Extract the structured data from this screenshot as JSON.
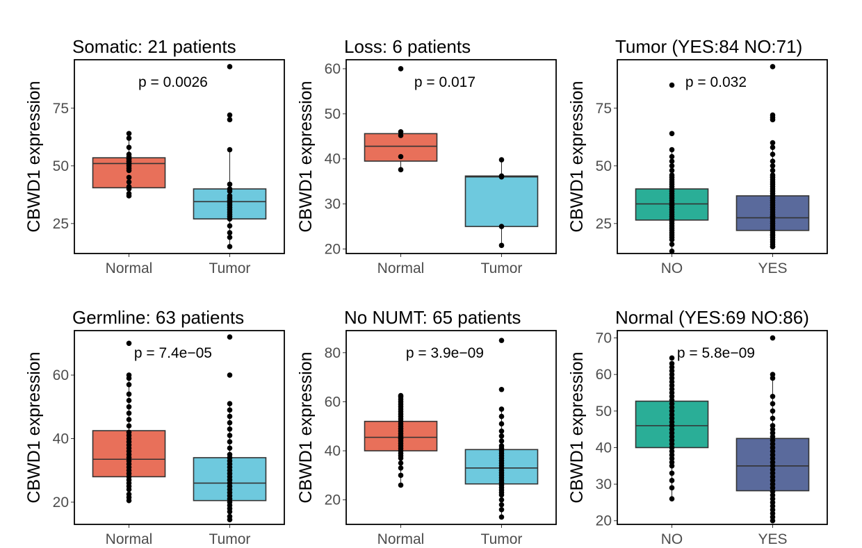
{
  "chart_data": [
    {
      "type": "box",
      "title": "Somatic: 21 patients",
      "ylabel": "CBWD1 expression",
      "xlabel": "",
      "ylim": [
        12,
        96
      ],
      "yticks": [
        25,
        50,
        75
      ],
      "pvalue": "p = 0.0026",
      "categories": [
        "Normal",
        "Tumor"
      ],
      "colors": [
        "#e8705a",
        "#6ec9de"
      ],
      "boxes": [
        {
          "q1": 40.5,
          "median": 51,
          "q3": 53.5,
          "whisker_low": 37,
          "whisker_high": 64
        },
        {
          "q1": 27,
          "median": 34.5,
          "q3": 40,
          "whisker_low": 15,
          "whisker_high": 57
        }
      ],
      "points": [
        [
          37,
          38,
          40,
          41,
          43,
          45,
          48,
          49,
          50,
          51,
          51,
          52,
          52,
          53,
          53,
          54,
          55,
          58,
          62,
          64
        ],
        [
          15,
          19,
          21,
          24,
          27,
          28,
          29,
          30,
          31,
          32,
          33,
          34,
          35,
          36,
          37,
          39,
          40,
          42,
          57,
          70,
          72,
          93
        ]
      ]
    },
    {
      "type": "box",
      "title": "Loss: 6 patients",
      "ylabel": "CBWD1 expression",
      "xlabel": "",
      "ylim": [
        19,
        62
      ],
      "yticks": [
        20,
        30,
        40,
        50,
        60
      ],
      "pvalue": "p = 0.017",
      "categories": [
        "Normal",
        "Tumor"
      ],
      "colors": [
        "#e8705a",
        "#6ec9de"
      ],
      "boxes": [
        {
          "q1": 39.5,
          "median": 42.8,
          "q3": 45.6,
          "whisker_low": 37.6,
          "whisker_high": 46
        },
        {
          "q1": 25,
          "median": 36,
          "q3": 36.2,
          "whisker_low": 20.8,
          "whisker_high": 39.8
        }
      ],
      "points": [
        [
          37.6,
          40.5,
          45.2,
          46,
          60
        ],
        [
          20.8,
          25,
          36,
          36.2,
          39.8
        ]
      ]
    },
    {
      "type": "box",
      "title": "Tumor (YES:84 NO:71)",
      "ylabel": "CBWD1 expression",
      "xlabel": "",
      "ylim": [
        12,
        96
      ],
      "yticks": [
        25,
        50,
        75
      ],
      "pvalue": "p = 0.032",
      "categories": [
        "NO",
        "YES"
      ],
      "colors": [
        "#2aae97",
        "#5a6a9c"
      ],
      "boxes": [
        {
          "q1": 26.5,
          "median": 33.5,
          "q3": 40,
          "whisker_low": 13,
          "whisker_high": 57
        },
        {
          "q1": 22,
          "median": 27.5,
          "q3": 37,
          "whisker_low": 15,
          "whisker_high": 60
        }
      ],
      "points": [
        [
          13,
          16,
          18,
          19,
          20,
          21,
          22,
          23,
          24,
          25,
          26,
          27,
          27,
          28,
          29,
          30,
          31,
          32,
          33,
          33,
          34,
          35,
          36,
          37,
          38,
          39,
          40,
          41,
          42,
          43,
          44,
          45,
          46,
          48,
          50,
          52,
          54,
          57,
          64,
          85
        ],
        [
          15,
          15,
          16,
          17,
          18,
          19,
          20,
          20,
          21,
          22,
          22,
          23,
          24,
          25,
          26,
          27,
          28,
          28,
          29,
          30,
          31,
          32,
          33,
          34,
          35,
          36,
          37,
          38,
          39,
          40,
          41,
          42,
          43,
          44,
          45,
          46,
          48,
          50,
          52,
          55,
          58,
          60,
          70,
          71,
          72,
          93
        ]
      ]
    },
    {
      "type": "box",
      "title": "Germline: 63 patients",
      "ylabel": "CBWD1 expression",
      "xlabel": "",
      "ylim": [
        13,
        74
      ],
      "yticks": [
        20,
        40,
        60
      ],
      "pvalue": "p = 7.4e−05",
      "categories": [
        "Normal",
        "Tumor"
      ],
      "colors": [
        "#e8705a",
        "#6ec9de"
      ],
      "boxes": [
        {
          "q1": 28,
          "median": 33.5,
          "q3": 42.5,
          "whisker_low": 20.5,
          "whisker_high": 60
        },
        {
          "q1": 20.5,
          "median": 26,
          "q3": 34,
          "whisker_low": 14.5,
          "whisker_high": 51
        }
      ],
      "points": [
        [
          20.5,
          21.5,
          22.5,
          24,
          25,
          26,
          27,
          28,
          29,
          30,
          31,
          32,
          33,
          34,
          35,
          36,
          37,
          38,
          39,
          40,
          41,
          42,
          44,
          46,
          48,
          50,
          52,
          54,
          57,
          59,
          60,
          70
        ],
        [
          14.5,
          15.5,
          17,
          18,
          19,
          20,
          21,
          22,
          23,
          24,
          25,
          26,
          27,
          28,
          29,
          30,
          31,
          32,
          33,
          34,
          35,
          37,
          39,
          41,
          43,
          45,
          47,
          49,
          51,
          60,
          72
        ]
      ]
    },
    {
      "type": "box",
      "title": "No NUMT: 65 patients",
      "ylabel": "CBWD1 expression",
      "xlabel": "",
      "ylim": [
        10,
        89
      ],
      "yticks": [
        20,
        40,
        60,
        80
      ],
      "pvalue": "p = 3.9e−09",
      "categories": [
        "Normal",
        "Tumor"
      ],
      "colors": [
        "#e8705a",
        "#6ec9de"
      ],
      "boxes": [
        {
          "q1": 40,
          "median": 45.5,
          "q3": 52,
          "whisker_low": 26,
          "whisker_high": 62.5
        },
        {
          "q1": 26.5,
          "median": 33,
          "q3": 40.5,
          "whisker_low": 13,
          "whisker_high": 57
        }
      ],
      "points": [
        [
          26,
          30,
          33,
          35,
          37,
          38,
          39,
          40,
          41,
          42,
          43,
          44,
          45,
          45,
          46,
          47,
          48,
          49,
          50,
          51,
          52,
          53,
          54,
          55,
          56,
          57,
          58,
          59,
          60,
          61,
          62,
          62.5
        ],
        [
          13,
          16,
          18,
          20,
          22,
          23,
          24,
          25,
          26,
          27,
          28,
          29,
          30,
          31,
          32,
          33,
          34,
          35,
          36,
          37,
          38,
          39,
          40,
          41,
          42,
          44,
          46,
          48,
          51,
          54,
          57,
          65,
          85
        ]
      ]
    },
    {
      "type": "box",
      "title": "Normal (YES:69 NO:86)",
      "ylabel": "CBWD1 expression",
      "xlabel": "",
      "ylim": [
        19,
        72
      ],
      "yticks": [
        20,
        30,
        40,
        50,
        60,
        70
      ],
      "pvalue": "p = 5.8e−09",
      "categories": [
        "NO",
        "YES"
      ],
      "colors": [
        "#2aae97",
        "#5a6a9c"
      ],
      "boxes": [
        {
          "q1": 40,
          "median": 46,
          "q3": 52.7,
          "whisker_low": 26,
          "whisker_high": 62
        },
        {
          "q1": 28.2,
          "median": 35,
          "q3": 42.5,
          "whisker_low": 20,
          "whisker_high": 60
        }
      ],
      "points": [
        [
          26,
          29,
          31,
          33,
          35,
          36,
          37,
          38,
          39,
          40,
          41,
          42,
          43,
          44,
          45,
          46,
          46,
          47,
          48,
          49,
          50,
          51,
          52,
          53,
          54,
          55,
          56,
          57,
          58,
          59,
          60,
          61,
          62,
          63,
          64.5
        ],
        [
          20,
          21,
          22,
          23,
          24,
          25,
          26,
          27,
          28,
          29,
          30,
          31,
          32,
          33,
          34,
          35,
          36,
          37,
          38,
          39,
          40,
          41,
          42,
          43,
          44,
          45,
          46,
          48,
          50,
          52,
          54,
          59,
          60,
          70
        ]
      ]
    }
  ]
}
